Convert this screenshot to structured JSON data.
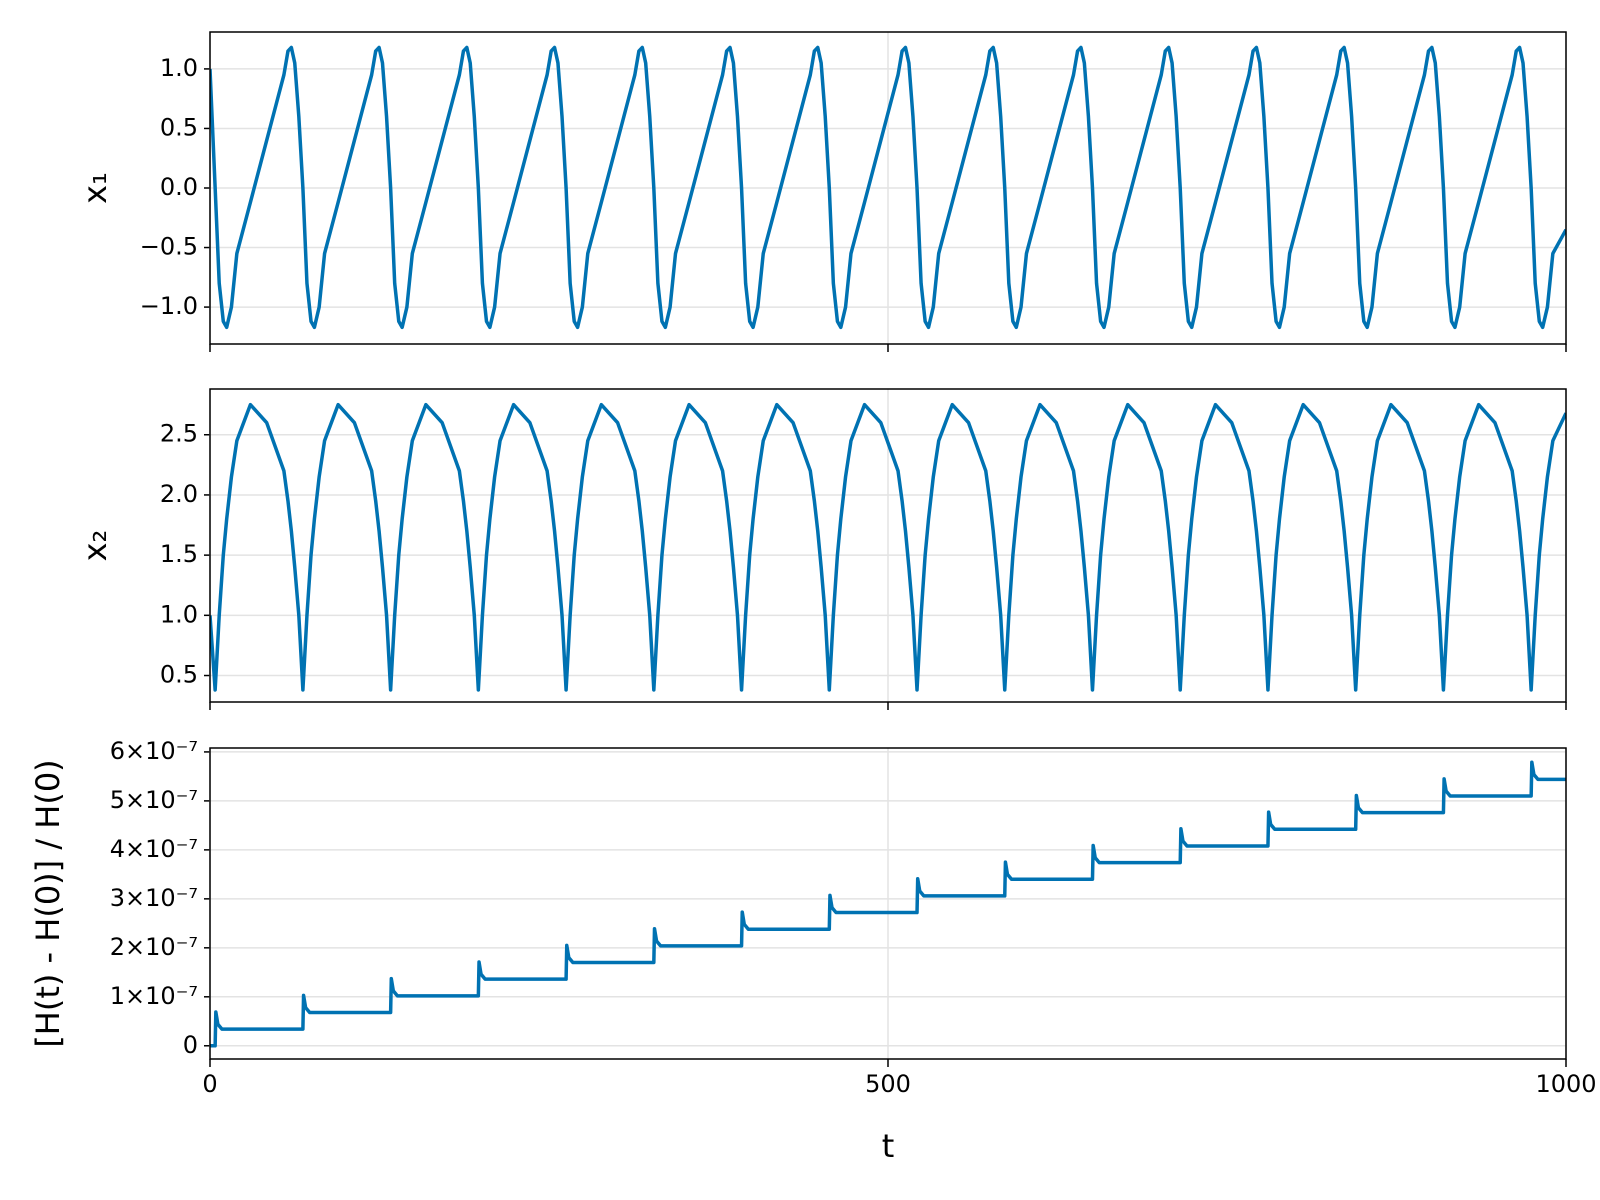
{
  "chart_data": [
    {
      "type": "line",
      "ylabel": "x₁",
      "x": [
        0,
        3.8,
        6.8,
        9.8,
        12.3,
        15.8,
        19.8,
        29.8,
        41.8,
        54.5,
        57.5,
        60,
        62.5,
        65.5,
        68.5,
        71.5,
        74.5,
        77,
        80.5,
        84.5,
        94.5,
        106.5,
        119.2,
        122.2,
        124.7,
        127.2,
        130.2,
        133.2,
        136.2,
        139.2,
        141.7,
        145.2,
        149.2,
        159.2,
        171.2,
        183.9,
        186.9,
        189.4,
        191.9,
        194.9,
        197.9,
        200.9,
        203.9,
        206.4,
        209.9,
        213.9,
        223.9,
        235.9,
        248.6,
        251.6,
        254.1,
        256.6,
        259.6,
        262.6,
        265.6,
        268.6,
        271.1,
        274.6,
        278.6,
        288.6,
        300.6,
        313.3,
        316.3,
        318.8,
        321.3,
        324.3,
        327.3,
        330.3,
        333.3,
        335.8,
        339.3,
        343.3,
        353.3,
        365.3,
        378,
        381,
        383.5,
        386,
        389,
        392,
        395,
        398,
        400.5,
        404,
        408,
        418,
        430,
        442.7,
        445.7,
        448.2,
        450.7,
        453.7,
        456.7,
        459.7,
        462.7,
        465.2,
        468.7,
        472.7,
        482.7,
        494.7,
        507.4,
        510.4,
        512.9,
        515.4,
        518.4,
        521.4,
        524.4,
        527.4,
        529.9,
        533.4,
        537.4,
        547.4,
        559.4,
        572.1,
        575.1,
        577.6,
        580.1,
        583.1,
        586.1,
        589.1,
        592.1,
        594.6,
        598.1,
        602.1,
        612.1,
        624.1,
        636.8,
        639.8,
        642.3,
        644.8,
        647.8,
        650.8,
        653.8,
        656.8,
        659.3,
        662.8,
        666.8,
        676.8,
        688.8,
        701.5,
        704.5,
        707,
        709.5,
        712.5,
        715.5,
        718.5,
        721.5,
        724,
        727.5,
        731.5,
        741.5,
        753.5,
        766.2,
        769.2,
        771.7,
        774.2,
        777.2,
        780.2,
        783.2,
        786.2,
        788.7,
        792.2,
        796.2,
        806.2,
        818.2,
        830.9,
        833.9,
        836.4,
        838.9,
        841.9,
        844.9,
        847.9,
        850.9,
        853.4,
        856.9,
        860.9,
        870.9,
        882.9,
        895.6,
        898.6,
        901.1,
        903.6,
        906.6,
        909.6,
        912.6,
        915.6,
        918.1,
        921.6,
        925.6,
        935.6,
        947.6,
        960.3,
        963.3,
        965.8,
        968.3,
        971.3,
        974.3,
        977.3,
        980.3,
        982.8,
        986.3,
        990.3,
        1000
      ],
      "series": [
        {
          "color": "#0072b2",
          "values": [
            1.0,
            0,
            -0.8,
            -1.12,
            -1.17,
            -1.0,
            -0.55,
            -0.12,
            0.4,
            0.95,
            1.15,
            1.18,
            1.05,
            0.6,
            0,
            -0.8,
            -1.12,
            -1.17,
            -1.0,
            -0.55,
            -0.12,
            0.4,
            0.95,
            1.15,
            1.18,
            1.05,
            0.6,
            0,
            -0.8,
            -1.12,
            -1.17,
            -1.0,
            -0.55,
            -0.12,
            0.4,
            0.95,
            1.15,
            1.18,
            1.05,
            0.6,
            0,
            -0.8,
            -1.12,
            -1.17,
            -1.0,
            -0.55,
            -0.12,
            0.4,
            0.95,
            1.15,
            1.18,
            1.05,
            0.6,
            0,
            -0.8,
            -1.12,
            -1.17,
            -1.0,
            -0.55,
            -0.12,
            0.4,
            0.95,
            1.15,
            1.18,
            1.05,
            0.6,
            0,
            -0.8,
            -1.12,
            -1.17,
            -1.0,
            -0.55,
            -0.12,
            0.4,
            0.95,
            1.15,
            1.18,
            1.05,
            0.6,
            0,
            -0.8,
            -1.12,
            -1.17,
            -1.0,
            -0.55,
            -0.12,
            0.4,
            0.95,
            1.15,
            1.18,
            1.05,
            0.6,
            0,
            -0.8,
            -1.12,
            -1.17,
            -1.0,
            -0.55,
            -0.12,
            0.4,
            0.95,
            1.15,
            1.18,
            1.05,
            0.6,
            0,
            -0.8,
            -1.12,
            -1.17,
            -1.0,
            -0.55,
            -0.12,
            0.4,
            0.95,
            1.15,
            1.18,
            1.05,
            0.6,
            0,
            -0.8,
            -1.12,
            -1.17,
            -1.0,
            -0.55,
            -0.12,
            0.4,
            0.95,
            1.15,
            1.18,
            1.05,
            0.6,
            0,
            -0.8,
            -1.12,
            -1.17,
            -1.0,
            -0.55,
            -0.12,
            0.4,
            0.95,
            1.15,
            1.18,
            1.05,
            0.6,
            0,
            -0.8,
            -1.12,
            -1.17,
            -1.0,
            -0.55,
            -0.12,
            0.4,
            0.95,
            1.15,
            1.18,
            1.05,
            0.6,
            0,
            -0.8,
            -1.12,
            -1.17,
            -1.0,
            -0.55,
            -0.12,
            0.4,
            0.95,
            1.15,
            1.18,
            1.05,
            0.6,
            0,
            -0.8,
            -1.12,
            -1.17,
            -1.0,
            -0.55,
            -0.12,
            0.4,
            0.95,
            1.15,
            1.18,
            1.05,
            0.6,
            0,
            -0.8,
            -1.12,
            -1.17,
            -1.0,
            -0.55,
            -0.12,
            0.4,
            0.95,
            1.15,
            1.18,
            1.05,
            0.6,
            0,
            -0.8,
            -1.12,
            -1.17,
            -1.0,
            -0.55,
            -0.35
          ]
        }
      ],
      "xlim": [
        0,
        1000
      ],
      "xticks": [
        0,
        500,
        1000
      ],
      "ylim": [
        -1.31,
        1.31
      ],
      "yticks": [
        {
          "value": -1.0,
          "label": "−1.0"
        },
        {
          "value": -0.5,
          "label": "−0.5"
        },
        {
          "value": 0,
          "label": "0.0"
        },
        0.5,
        {
          "value": 1.0,
          "label": "1.0"
        }
      ],
      "grid": true
    },
    {
      "type": "line",
      "ylabel": "x₂",
      "x": [
        0,
        3.8,
        6.8,
        9.8,
        12.3,
        15.8,
        19.8,
        29.8,
        41.8,
        54.5,
        57.5,
        60,
        62.5,
        65.5,
        68.5,
        71.5,
        74.5,
        77,
        80.5,
        84.5,
        94.5,
        106.5,
        119.2,
        122.2,
        124.7,
        127.2,
        130.2,
        133.2,
        136.2,
        139.2,
        141.7,
        145.2,
        149.2,
        159.2,
        171.2,
        183.9,
        186.9,
        189.4,
        191.9,
        194.9,
        197.9,
        200.9,
        203.9,
        206.4,
        209.9,
        213.9,
        223.9,
        235.9,
        248.6,
        251.6,
        254.1,
        256.6,
        259.6,
        262.6,
        265.6,
        268.6,
        271.1,
        274.6,
        278.6,
        288.6,
        300.6,
        313.3,
        316.3,
        318.8,
        321.3,
        324.3,
        327.3,
        330.3,
        333.3,
        335.8,
        339.3,
        343.3,
        353.3,
        365.3,
        378,
        381,
        383.5,
        386,
        389,
        392,
        395,
        398,
        400.5,
        404,
        408,
        418,
        430,
        442.7,
        445.7,
        448.2,
        450.7,
        453.7,
        456.7,
        459.7,
        462.7,
        465.2,
        468.7,
        472.7,
        482.7,
        494.7,
        507.4,
        510.4,
        512.9,
        515.4,
        518.4,
        521.4,
        524.4,
        527.4,
        529.9,
        533.4,
        537.4,
        547.4,
        559.4,
        572.1,
        575.1,
        577.6,
        580.1,
        583.1,
        586.1,
        589.1,
        592.1,
        594.6,
        598.1,
        602.1,
        612.1,
        624.1,
        636.8,
        639.8,
        642.3,
        644.8,
        647.8,
        650.8,
        653.8,
        656.8,
        659.3,
        662.8,
        666.8,
        676.8,
        688.8,
        701.5,
        704.5,
        707,
        709.5,
        712.5,
        715.5,
        718.5,
        721.5,
        724,
        727.5,
        731.5,
        741.5,
        753.5,
        766.2,
        769.2,
        771.7,
        774.2,
        777.2,
        780.2,
        783.2,
        786.2,
        788.7,
        792.2,
        796.2,
        806.2,
        818.2,
        830.9,
        833.9,
        836.4,
        838.9,
        841.9,
        844.9,
        847.9,
        850.9,
        853.4,
        856.9,
        860.9,
        870.9,
        882.9,
        895.6,
        898.6,
        901.1,
        903.6,
        906.6,
        909.6,
        912.6,
        915.6,
        918.1,
        921.6,
        925.6,
        935.6,
        947.6,
        960.3,
        963.3,
        965.8,
        968.3,
        971.3,
        974.3,
        977.3,
        980.3,
        982.8,
        986.3,
        990.3,
        1000
      ],
      "series": [
        {
          "color": "#0072b2",
          "values": [
            1.0,
            0.38,
            1.0,
            1.5,
            1.8,
            2.15,
            2.45,
            2.75,
            2.6,
            2.2,
            1.95,
            1.7,
            1.4,
            1.0,
            0.38,
            1.0,
            1.5,
            1.8,
            2.15,
            2.45,
            2.75,
            2.6,
            2.2,
            1.95,
            1.7,
            1.4,
            1.0,
            0.38,
            1.0,
            1.5,
            1.8,
            2.15,
            2.45,
            2.75,
            2.6,
            2.2,
            1.95,
            1.7,
            1.4,
            1.0,
            0.38,
            1.0,
            1.5,
            1.8,
            2.15,
            2.45,
            2.75,
            2.6,
            2.2,
            1.95,
            1.7,
            1.4,
            1.0,
            0.38,
            1.0,
            1.5,
            1.8,
            2.15,
            2.45,
            2.75,
            2.6,
            2.2,
            1.95,
            1.7,
            1.4,
            1.0,
            0.38,
            1.0,
            1.5,
            1.8,
            2.15,
            2.45,
            2.75,
            2.6,
            2.2,
            1.95,
            1.7,
            1.4,
            1.0,
            0.38,
            1.0,
            1.5,
            1.8,
            2.15,
            2.45,
            2.75,
            2.6,
            2.2,
            1.95,
            1.7,
            1.4,
            1.0,
            0.38,
            1.0,
            1.5,
            1.8,
            2.15,
            2.45,
            2.75,
            2.6,
            2.2,
            1.95,
            1.7,
            1.4,
            1.0,
            0.38,
            1.0,
            1.5,
            1.8,
            2.15,
            2.45,
            2.75,
            2.6,
            2.2,
            1.95,
            1.7,
            1.4,
            1.0,
            0.38,
            1.0,
            1.5,
            1.8,
            2.15,
            2.45,
            2.75,
            2.6,
            2.2,
            1.95,
            1.7,
            1.4,
            1.0,
            0.38,
            1.0,
            1.5,
            1.8,
            2.15,
            2.45,
            2.75,
            2.6,
            2.2,
            1.95,
            1.7,
            1.4,
            1.0,
            0.38,
            1.0,
            1.5,
            1.8,
            2.15,
            2.45,
            2.75,
            2.6,
            2.2,
            1.95,
            1.7,
            1.4,
            1.0,
            0.38,
            1.0,
            1.5,
            1.8,
            2.15,
            2.45,
            2.75,
            2.6,
            2.2,
            1.95,
            1.7,
            1.4,
            1.0,
            0.38,
            1.0,
            1.5,
            1.8,
            2.15,
            2.45,
            2.75,
            2.6,
            2.2,
            1.95,
            1.7,
            1.4,
            1.0,
            0.38,
            1.0,
            1.5,
            1.8,
            2.15,
            2.45,
            2.75,
            2.6,
            2.2,
            1.95,
            1.7,
            1.4,
            1.0,
            0.38,
            1.0,
            1.5,
            1.8,
            2.15,
            2.45,
            2.68
          ]
        }
      ],
      "xlim": [
        0,
        1000
      ],
      "xticks": [
        0,
        500,
        1000
      ],
      "ylim": [
        0.28,
        2.88
      ],
      "yticks": [
        0.5,
        {
          "value": 1.0,
          "label": "1.0"
        },
        1.5,
        {
          "value": 2.0,
          "label": "2.0"
        },
        2.5
      ],
      "grid": true
    },
    {
      "type": "line",
      "ylabel": "[H(t) - H(0)] / H(0)",
      "xlabel": "t",
      "x": [
        0,
        3.8,
        4.3,
        5.8,
        8.8,
        68.5,
        69,
        70.5,
        73.5,
        133.2,
        133.7,
        135.2,
        138.2,
        197.9,
        198.4,
        199.9,
        202.9,
        262.6,
        263.1,
        264.6,
        267.6,
        327.3,
        327.8,
        329.3,
        332.3,
        392,
        392.5,
        394,
        397,
        456.7,
        457.2,
        458.7,
        461.7,
        521.4,
        521.9,
        523.4,
        526.4,
        586.1,
        586.6,
        588.1,
        591.1,
        650.8,
        651.3,
        652.8,
        655.8,
        715.5,
        716,
        717.5,
        720.5,
        780.2,
        780.7,
        782.2,
        785.2,
        844.9,
        845.4,
        846.9,
        849.9,
        909.6,
        910.1,
        911.6,
        914.6,
        974.3,
        974.8,
        976.3,
        979.3,
        1000
      ],
      "series": [
        {
          "color": "#0072b2",
          "values": [
            0,
            0,
            6.9e-08,
            4.4e-08,
            3.4e-08,
            3.4e-08,
            1.03e-07,
            7.8e-08,
            6.8e-08,
            6.8e-08,
            1.37e-07,
            1.12e-07,
            1.02e-07,
            1.02e-07,
            1.71e-07,
            1.46e-07,
            1.36e-07,
            1.36e-07,
            2.05e-07,
            1.8e-07,
            1.7e-07,
            1.7e-07,
            2.39e-07,
            2.14e-07,
            2.04e-07,
            2.04e-07,
            2.73e-07,
            2.48e-07,
            2.38e-07,
            2.38e-07,
            3.07e-07,
            2.82e-07,
            2.72e-07,
            2.72e-07,
            3.41e-07,
            3.16e-07,
            3.06e-07,
            3.06e-07,
            3.75e-07,
            3.5e-07,
            3.4e-07,
            3.4e-07,
            4.09e-07,
            3.84e-07,
            3.74e-07,
            3.74e-07,
            4.43e-07,
            4.18e-07,
            4.08e-07,
            4.08e-07,
            4.77e-07,
            4.52e-07,
            4.42e-07,
            4.42e-07,
            5.11e-07,
            4.86e-07,
            4.76e-07,
            4.76e-07,
            5.45e-07,
            5.2e-07,
            5.1e-07,
            5.1e-07,
            5.79e-07,
            5.54e-07,
            5.44e-07,
            5.44e-07
          ]
        }
      ],
      "xlim": [
        0,
        1000
      ],
      "xticks": [
        0,
        500,
        1000
      ],
      "ylim": [
        -2.7e-08,
        6.08e-07
      ],
      "yticks": [
        0,
        {
          "value": 1e-07,
          "label": "1×10⁻⁷"
        },
        {
          "value": 2e-07,
          "label": "2×10⁻⁷"
        },
        {
          "value": 3e-07,
          "label": "3×10⁻⁷"
        },
        {
          "value": 4e-07,
          "label": "4×10⁻⁷"
        },
        {
          "value": 5e-07,
          "label": "5×10⁻⁷"
        },
        {
          "value": 6e-07,
          "label": "6×10⁻⁷"
        }
      ],
      "grid": true
    }
  ]
}
